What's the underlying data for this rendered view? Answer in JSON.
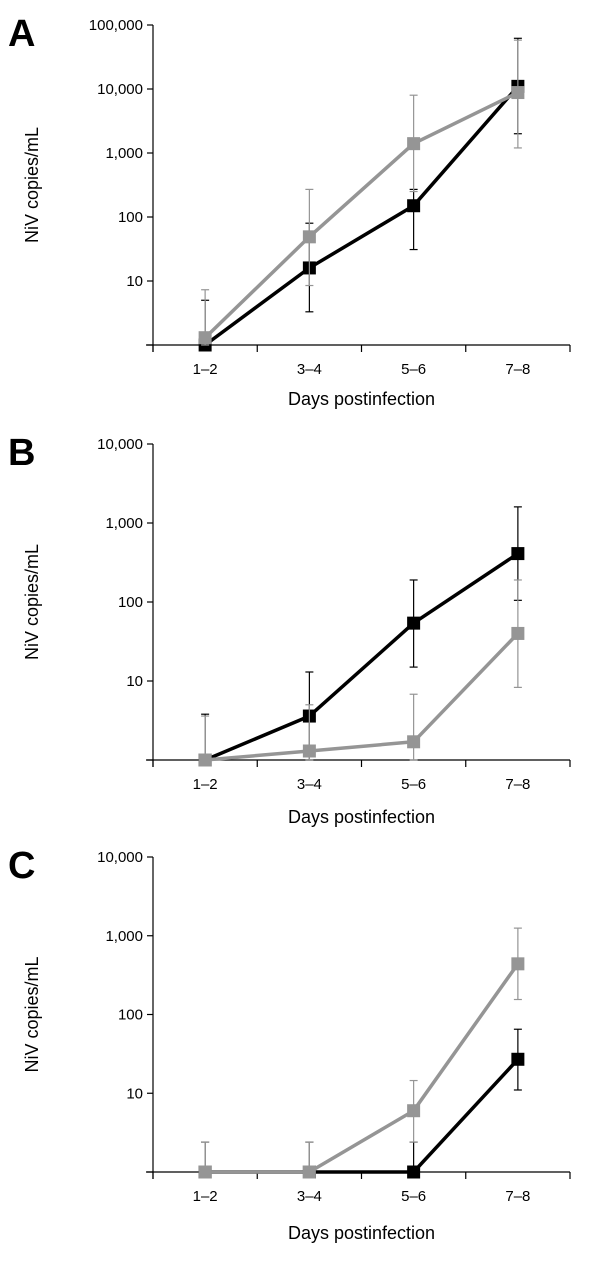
{
  "chart_data": [
    {
      "type": "line",
      "panel": "A",
      "categories": [
        "1–2",
        "3–4",
        "5–6",
        "7–8"
      ],
      "xlabel": "Days postinfection",
      "ylabel": "NiV copies/mL",
      "y_scale": "log",
      "ylim": [
        1,
        100000
      ],
      "y_ticks": [
        "10",
        "100",
        "1,000",
        "10,000",
        "100,000"
      ],
      "grid": false,
      "series": [
        {
          "color": "#000000",
          "values": [
            1,
            16,
            150,
            11000
          ],
          "error_upper": [
            5,
            80,
            270,
            62000
          ],
          "error_lower": [
            1,
            3.3,
            31,
            2000
          ]
        },
        {
          "color": "#959595",
          "values": [
            1.3,
            49,
            1400,
            8800
          ],
          "error_upper": [
            7.3,
            270,
            8000,
            58000
          ],
          "error_lower": [
            1,
            8.5,
            250,
            1200
          ]
        }
      ]
    },
    {
      "type": "line",
      "panel": "B",
      "categories": [
        "1–2",
        "3–4",
        "5–6",
        "7–8"
      ],
      "xlabel": "Days postinfection",
      "ylabel": "NiV copies/mL",
      "y_scale": "log",
      "ylim": [
        1,
        10000
      ],
      "y_ticks": [
        "10",
        "100",
        "1,000",
        "10,000"
      ],
      "grid": false,
      "series": [
        {
          "color": "#000000",
          "values": [
            1,
            3.6,
            54,
            410
          ],
          "error_upper": [
            3.8,
            13,
            190,
            1600
          ],
          "error_lower": [
            1,
            1,
            15,
            105
          ]
        },
        {
          "color": "#959595",
          "values": [
            1,
            1.3,
            1.7,
            40
          ],
          "error_upper": [
            3.6,
            5,
            6.8,
            190
          ],
          "error_lower": [
            1,
            1,
            1,
            8.3
          ]
        }
      ]
    },
    {
      "type": "line",
      "panel": "C",
      "categories": [
        "1–2",
        "3–4",
        "5–6",
        "7–8"
      ],
      "xlabel": "Days postinfection",
      "ylabel": "NiV copies/mL",
      "y_scale": "log",
      "ylim": [
        1,
        10000
      ],
      "y_ticks": [
        "10",
        "100",
        "1,000",
        "10,000"
      ],
      "grid": false,
      "series": [
        {
          "color": "#000000",
          "values": [
            1,
            1,
            1,
            27
          ],
          "error_upper": [
            2.4,
            2.4,
            2.4,
            65
          ],
          "error_lower": [
            1,
            1,
            1,
            11
          ]
        },
        {
          "color": "#959595",
          "values": [
            1,
            1,
            6,
            440
          ],
          "error_upper": [
            2.4,
            2.4,
            14.5,
            1250
          ],
          "error_lower": [
            1,
            1,
            2.4,
            155
          ]
        }
      ]
    }
  ]
}
